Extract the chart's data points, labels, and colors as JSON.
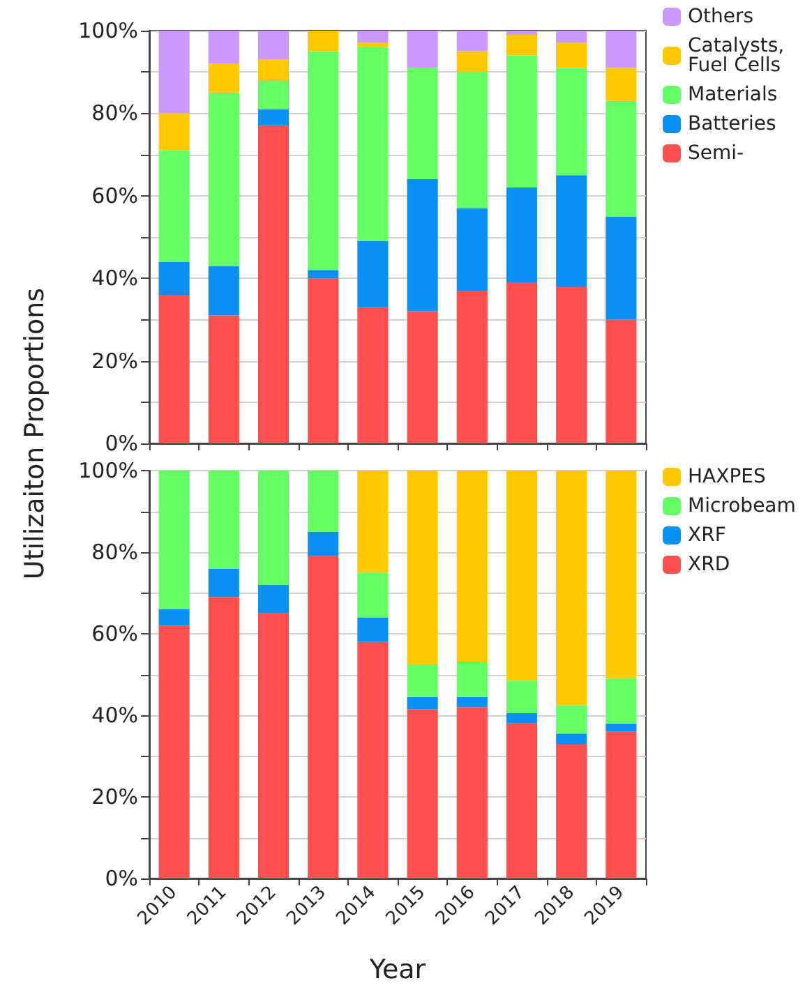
{
  "chart_data": [
    {
      "type": "bar",
      "stacked": true,
      "ylabel": "Utilizaiton Proportions",
      "categories": [
        "2010",
        "2011",
        "2012",
        "2013",
        "2014",
        "2015",
        "2016",
        "2017",
        "2018",
        "2019"
      ],
      "series": [
        {
          "name": "Semi-",
          "color": "#ff5050",
          "values": [
            36,
            31,
            77,
            40,
            33,
            32,
            37,
            39,
            38,
            30
          ]
        },
        {
          "name": "Batteries",
          "color": "#0a90f0",
          "values": [
            8,
            12,
            4,
            2,
            16,
            32,
            20,
            23,
            27,
            25
          ]
        },
        {
          "name": "Materials",
          "color": "#66ff66",
          "values": [
            27,
            42,
            7,
            53,
            47,
            27,
            33,
            32,
            26,
            28
          ]
        },
        {
          "name": "Catalysts, Fuel Cells",
          "color": "#ffc800",
          "values": [
            9,
            7,
            5,
            5,
            1,
            0,
            5,
            5,
            6,
            8
          ]
        },
        {
          "name": "Others",
          "color": "#cc99ff",
          "values": [
            20,
            8,
            7,
            0,
            3,
            9,
            5,
            1,
            3,
            9
          ]
        }
      ],
      "ylim": [
        0,
        100
      ],
      "yticks": [
        {
          "value": 0,
          "label": "0%"
        },
        {
          "value": 10,
          "label": null
        },
        {
          "value": 20,
          "label": "20%"
        },
        {
          "value": 30,
          "label": null
        },
        {
          "value": 40,
          "label": "40%"
        },
        {
          "value": 50,
          "label": null
        },
        {
          "value": 60,
          "label": "60%"
        },
        {
          "value": 70,
          "label": null
        },
        {
          "value": 80,
          "label": "80%"
        },
        {
          "value": 90,
          "label": null
        },
        {
          "value": 100,
          "label": "100%"
        }
      ],
      "grid": "y",
      "legend": "right",
      "tick_labels": "y"
    },
    {
      "type": "bar",
      "stacked": true,
      "xlabel": "Year",
      "categories": [
        "2010",
        "2011",
        "2012",
        "2013",
        "2014",
        "2015",
        "2016",
        "2017",
        "2018",
        "2019"
      ],
      "series": [
        {
          "name": "XRD",
          "color": "#ff5050",
          "values": [
            62,
            69,
            65,
            79,
            58,
            41.5,
            42,
            38,
            33,
            36
          ]
        },
        {
          "name": "XRF",
          "color": "#0a90f0",
          "values": [
            4,
            7,
            7,
            6,
            6,
            3,
            2.5,
            2.5,
            2.5,
            2
          ]
        },
        {
          "name": "Microbeam",
          "color": "#66ff66",
          "values": [
            34,
            24,
            28,
            15,
            11,
            8,
            8.5,
            8,
            7,
            11
          ]
        },
        {
          "name": "HAXPES",
          "color": "#ffc800",
          "values": [
            0,
            0,
            0,
            0,
            25,
            47.5,
            47,
            51.5,
            57.5,
            51
          ]
        }
      ],
      "ylim": [
        0,
        100
      ],
      "yticks": [
        {
          "value": 0,
          "label": "0%"
        },
        {
          "value": 10,
          "label": null
        },
        {
          "value": 20,
          "label": "20%"
        },
        {
          "value": 30,
          "label": null
        },
        {
          "value": 40,
          "label": "40%"
        },
        {
          "value": 50,
          "label": null
        },
        {
          "value": 60,
          "label": "60%"
        },
        {
          "value": 70,
          "label": null
        },
        {
          "value": 80,
          "label": "80%"
        },
        {
          "value": 90,
          "label": null
        },
        {
          "value": 100,
          "label": "100%"
        }
      ],
      "grid": "y",
      "legend": "right"
    }
  ]
}
